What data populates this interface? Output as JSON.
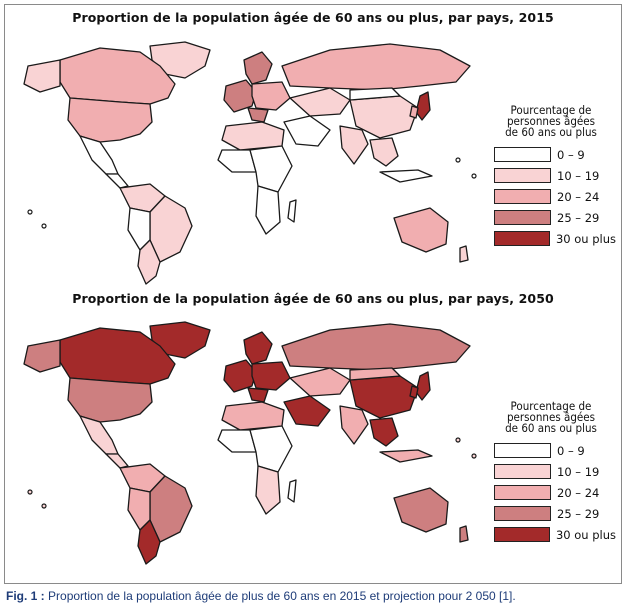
{
  "maps": [
    {
      "title": "Proportion de la population âgée de 60 ans ou plus, par pays, 2015"
    },
    {
      "title": "Proportion de la population âgée de 60 ans ou plus, par pays, 2050"
    }
  ],
  "legend": {
    "title_lines": [
      "Pourcentage de",
      "personnes âgées",
      "de 60 ans ou plus"
    ],
    "categories": [
      {
        "label": "0 – 9",
        "color": "#ffffff"
      },
      {
        "label": "10 – 19",
        "color": "#f9d3d4"
      },
      {
        "label": "20 – 24",
        "color": "#f1aeb0"
      },
      {
        "label": "25 – 29",
        "color": "#cd7f80"
      },
      {
        "label": "30 ou plus",
        "color": "#a32a2a"
      }
    ]
  },
  "caption": {
    "label": "Fig. 1 :",
    "text": "Proportion de la population âgée de plus de 60 ans en 2015 et projection pour 2 050 [1]."
  }
}
